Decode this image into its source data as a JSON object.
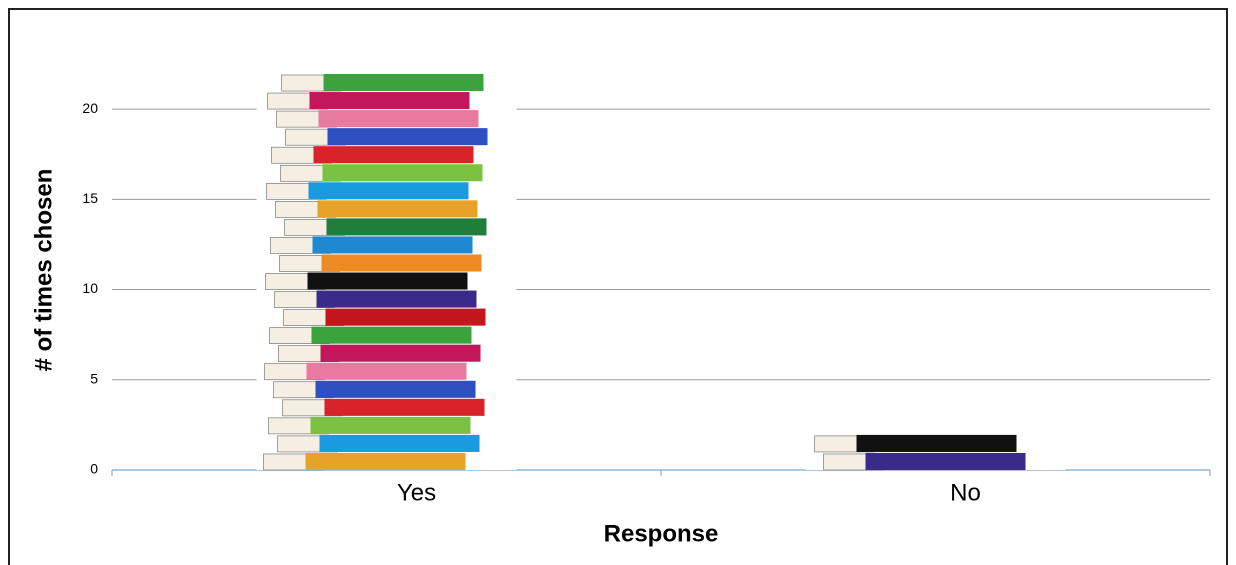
{
  "chart_data": {
    "type": "bar",
    "x_label": "Response",
    "y_label": "# of times chosen",
    "categories": [
      "Yes",
      "No"
    ],
    "values": [
      22,
      2
    ],
    "ylim": [
      0,
      22
    ],
    "yticks": [
      0,
      5,
      10,
      15,
      20
    ],
    "grid": true
  }
}
